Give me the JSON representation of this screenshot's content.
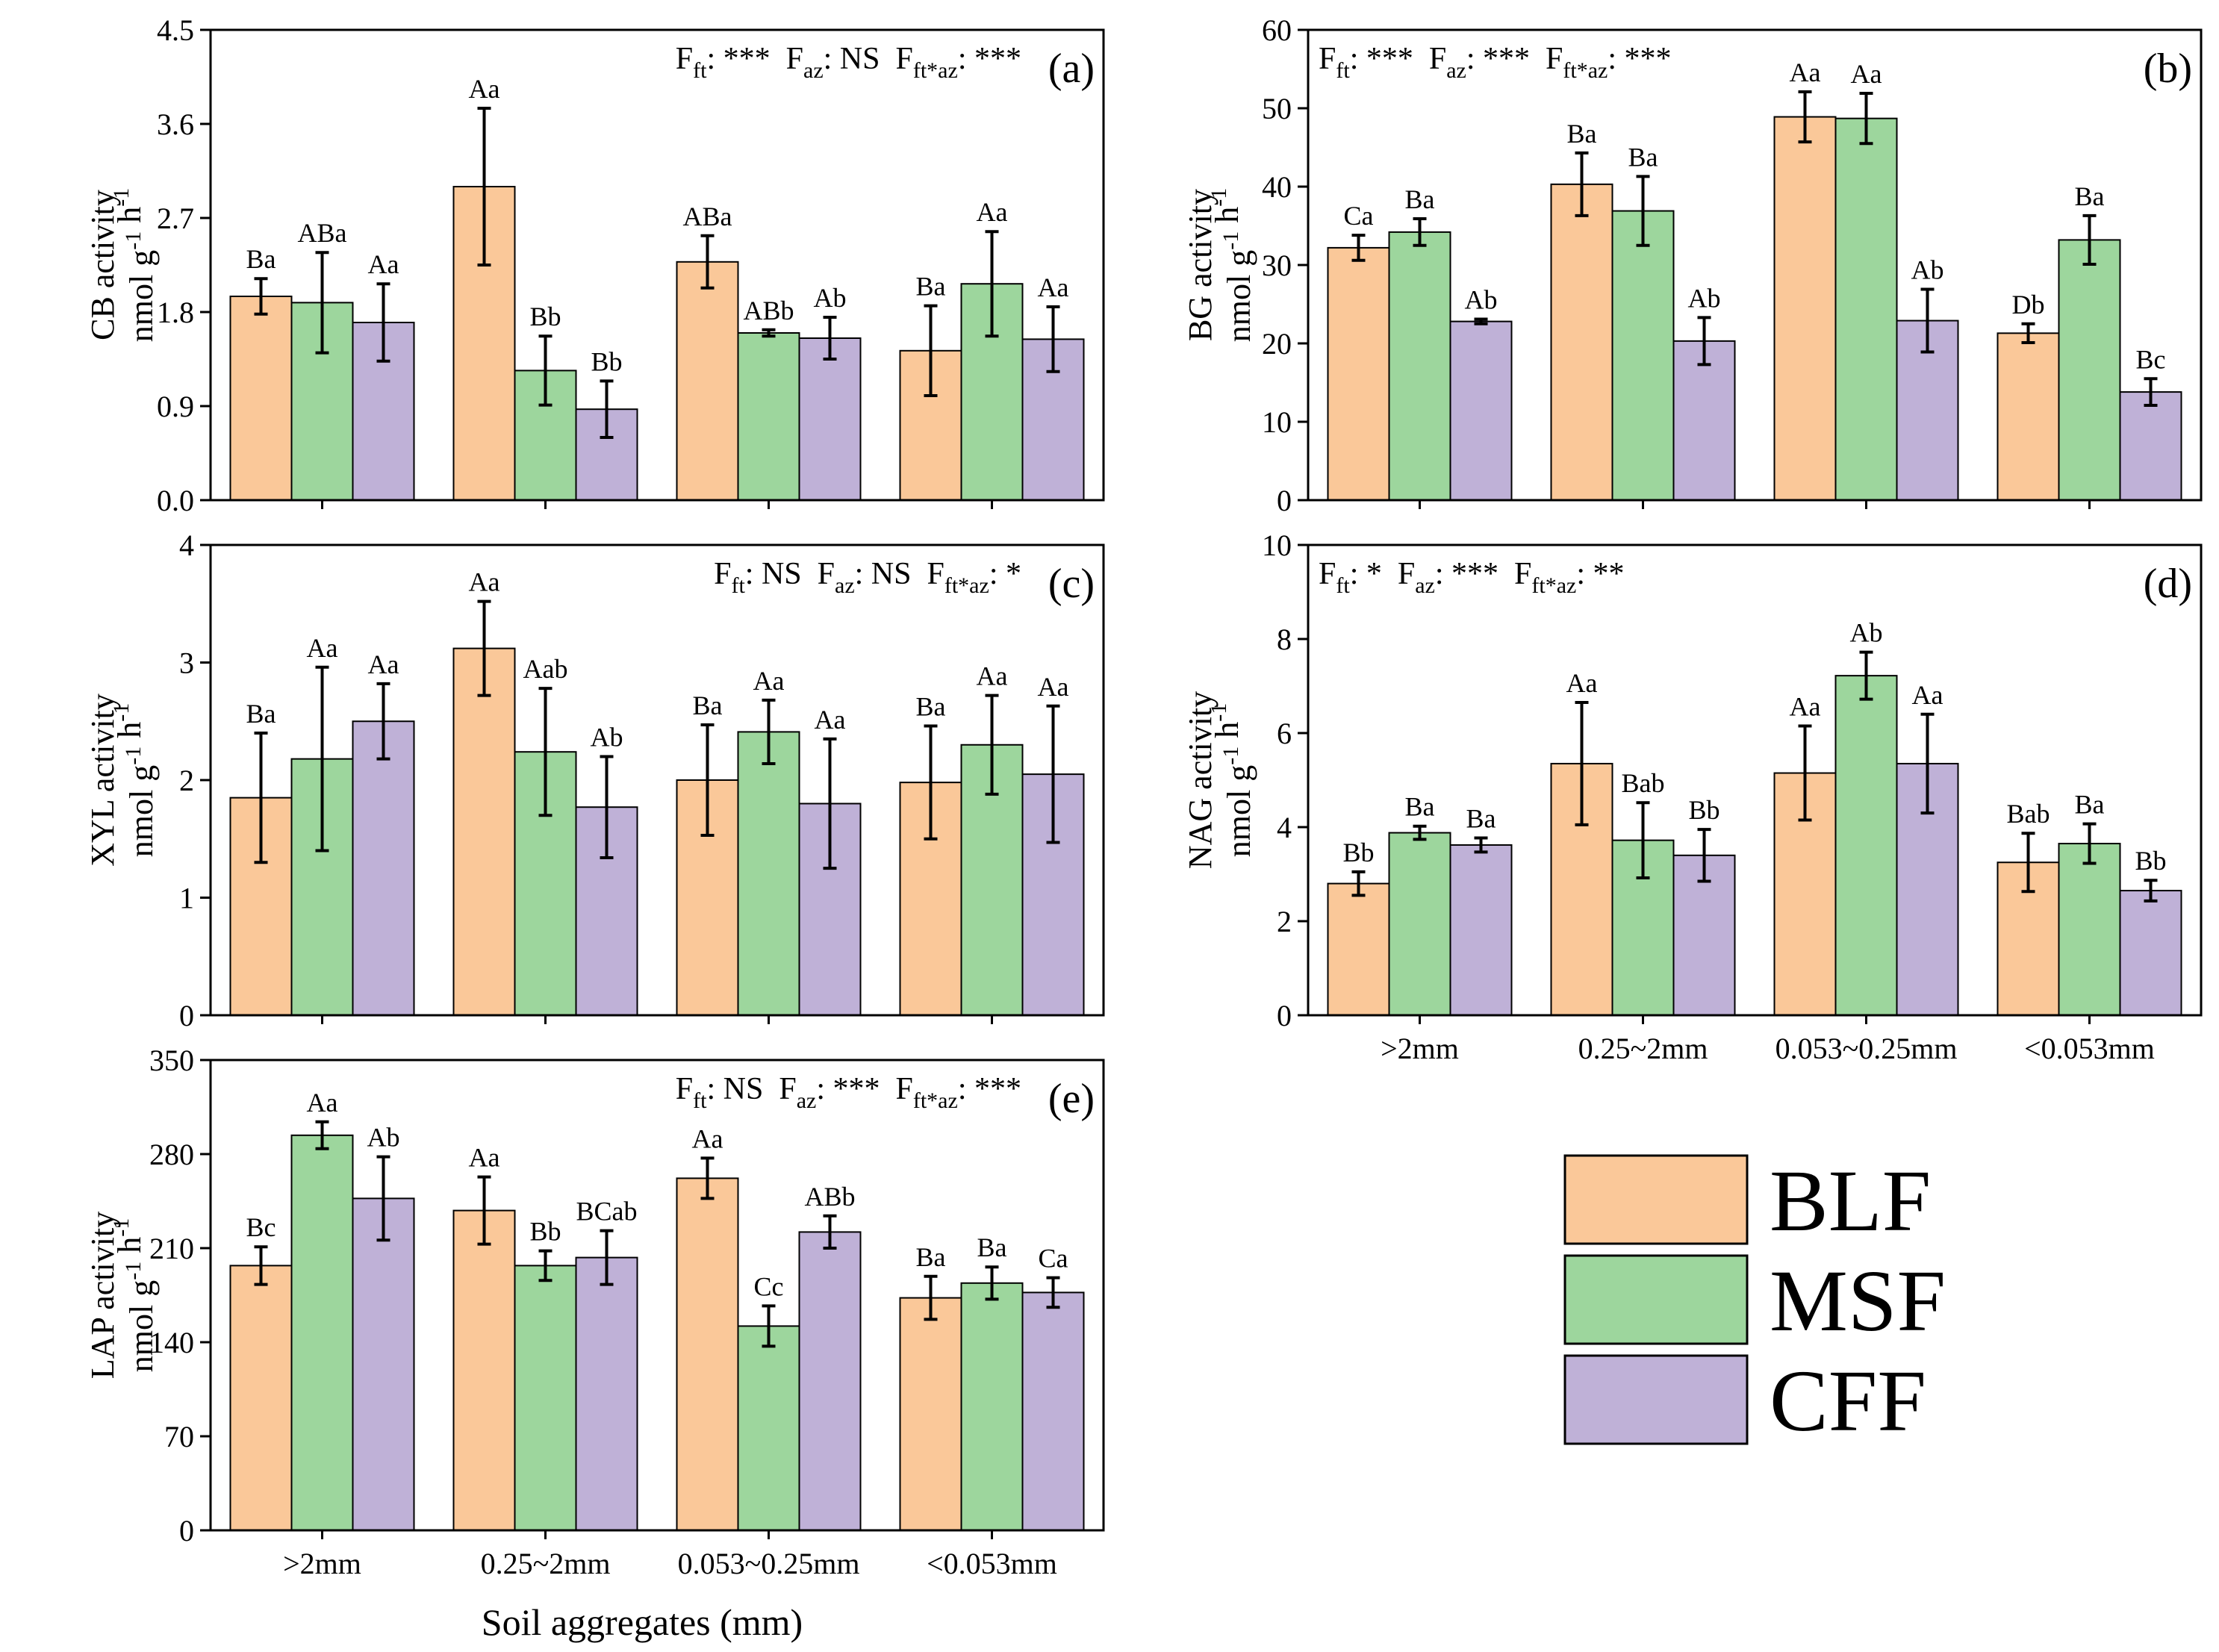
{
  "colors": {
    "BLF": "#FAC899",
    "MSF": "#9DD69D",
    "CFF": "#BFB1D7",
    "stroke": "#000000"
  },
  "legend": [
    {
      "key": "BLF",
      "label": "BLF"
    },
    {
      "key": "MSF",
      "label": "MSF"
    },
    {
      "key": "CFF",
      "label": "CFF"
    }
  ],
  "x_axis_title": "Soil aggregates (mm)",
  "chart_data": [
    {
      "id": "a",
      "type": "bar",
      "panel_label": "(a)",
      "ylabel_main": "CB activity",
      "ylabel_unit": "nmol g-1 h-1",
      "ylim": [
        0,
        4.5
      ],
      "yticks": [
        "0.0",
        "0.9",
        "1.8",
        "2.7",
        "3.6",
        "4.5"
      ],
      "stats": "Fft: ***  Faz: NS  Fft*az: ***",
      "stat_parts": [
        [
          "F",
          "ft",
          ": ***  "
        ],
        [
          "F",
          "az",
          ": NS  "
        ],
        [
          "F",
          "ft*az",
          ": ***"
        ]
      ],
      "categories": [
        ">2mm",
        "0.25~2mm",
        "0.053~0.25mm",
        "<0.053mm"
      ],
      "show_categories": false,
      "series": [
        {
          "name": "BLF",
          "values": [
            1.95,
            3.0,
            2.28,
            1.43
          ],
          "errors": [
            0.17,
            0.75,
            0.25,
            0.43
          ],
          "labels": [
            "Ba",
            "Aa",
            "ABa",
            "Ba"
          ]
        },
        {
          "name": "MSF",
          "values": [
            1.89,
            1.24,
            1.6,
            2.07
          ],
          "errors": [
            0.48,
            0.33,
            0.03,
            0.5
          ],
          "labels": [
            "ABa",
            "Bb",
            "ABb",
            "Aa"
          ]
        },
        {
          "name": "CFF",
          "values": [
            1.7,
            0.87,
            1.55,
            1.54
          ],
          "errors": [
            0.37,
            0.27,
            0.2,
            0.31
          ],
          "labels": [
            "Aa",
            "Bb",
            "Ab",
            "Aa"
          ]
        }
      ]
    },
    {
      "id": "b",
      "type": "bar",
      "panel_label": "(b)",
      "ylabel_main": "BG activity",
      "ylabel_unit": "nmol g-1 h-1",
      "ylim": [
        0,
        60
      ],
      "yticks": [
        "0",
        "10",
        "20",
        "30",
        "40",
        "50",
        "60"
      ],
      "stats": "Fft: ***  Faz: ***  Fft*az: ***",
      "stat_parts": [
        [
          "F",
          "ft",
          ": ***  "
        ],
        [
          "F",
          "az",
          ": ***  "
        ],
        [
          "F",
          "ft*az",
          ": ***"
        ]
      ],
      "categories": [
        ">2mm",
        "0.25~2mm",
        "0.053~0.25mm",
        "<0.053mm"
      ],
      "show_categories": false,
      "series": [
        {
          "name": "BLF",
          "values": [
            32.2,
            40.3,
            48.9,
            21.3
          ],
          "errors": [
            1.6,
            4.0,
            3.2,
            1.2
          ],
          "labels": [
            "Ca",
            "Ba",
            "Aa",
            "Db"
          ]
        },
        {
          "name": "MSF",
          "values": [
            34.2,
            36.9,
            48.7,
            33.2
          ],
          "errors": [
            1.7,
            4.4,
            3.2,
            3.1
          ],
          "labels": [
            "Ba",
            "Ba",
            "Aa",
            "Ba"
          ]
        },
        {
          "name": "CFF",
          "values": [
            22.8,
            20.3,
            22.9,
            13.8
          ],
          "errors": [
            0.3,
            3.0,
            4.0,
            1.7
          ],
          "labels": [
            "Ab",
            "Ab",
            "Ab",
            "Bc"
          ]
        }
      ]
    },
    {
      "id": "c",
      "type": "bar",
      "panel_label": "(c)",
      "ylabel_main": "XYL activity",
      "ylabel_unit": "nmol g-1 h-1",
      "ylim": [
        0,
        4
      ],
      "yticks": [
        "0",
        "1",
        "2",
        "3",
        "4"
      ],
      "stats": "Fft: NS  Faz: NS  Fft*az: *",
      "stat_parts": [
        [
          "F",
          "ft",
          ": NS  "
        ],
        [
          "F",
          "az",
          ": NS  "
        ],
        [
          "F",
          "ft*az",
          ": *"
        ]
      ],
      "categories": [
        ">2mm",
        "0.25~2mm",
        "0.053~0.25mm",
        "<0.053mm"
      ],
      "show_categories": false,
      "series": [
        {
          "name": "BLF",
          "values": [
            1.85,
            3.12,
            2.0,
            1.98
          ],
          "errors": [
            0.55,
            0.4,
            0.47,
            0.48
          ],
          "labels": [
            "Ba",
            "Aa",
            "Ba",
            "Ba"
          ]
        },
        {
          "name": "MSF",
          "values": [
            2.18,
            2.24,
            2.41,
            2.3
          ],
          "errors": [
            0.78,
            0.54,
            0.27,
            0.42
          ],
          "labels": [
            "Aa",
            "Aab",
            "Aa",
            "Aa"
          ]
        },
        {
          "name": "CFF",
          "values": [
            2.5,
            1.77,
            1.8,
            2.05
          ],
          "errors": [
            0.32,
            0.43,
            0.55,
            0.58
          ],
          "labels": [
            "Aa",
            "Ab",
            "Aa",
            "Aa"
          ]
        }
      ]
    },
    {
      "id": "d",
      "type": "bar",
      "panel_label": "(d)",
      "ylabel_main": "NAG activity",
      "ylabel_unit": "nmol g-1 h-1",
      "ylim": [
        0,
        10
      ],
      "yticks": [
        "0",
        "2",
        "4",
        "6",
        "8",
        "10"
      ],
      "stats": "Fft: *  Faz: ***  Fft*az: **",
      "stat_parts": [
        [
          "F",
          "ft",
          ": *  "
        ],
        [
          "F",
          "az",
          ": ***  "
        ],
        [
          "F",
          "ft*az",
          ": **"
        ]
      ],
      "categories": [
        ">2mm",
        "0.25~2mm",
        "0.053~0.25mm",
        "<0.053mm"
      ],
      "show_categories": true,
      "series": [
        {
          "name": "BLF",
          "values": [
            2.8,
            5.35,
            5.15,
            3.25
          ],
          "errors": [
            0.25,
            1.3,
            1.0,
            0.62
          ],
          "labels": [
            "Bb",
            "Aa",
            "Aa",
            "Bab"
          ]
        },
        {
          "name": "MSF",
          "values": [
            3.88,
            3.72,
            7.22,
            3.65
          ],
          "errors": [
            0.14,
            0.8,
            0.5,
            0.42
          ],
          "labels": [
            "Ba",
            "Bab",
            "Ab",
            "Ba"
          ]
        },
        {
          "name": "CFF",
          "values": [
            3.62,
            3.4,
            5.35,
            2.65
          ],
          "errors": [
            0.15,
            0.55,
            1.05,
            0.22
          ],
          "labels": [
            "Ba",
            "Bb",
            "Aa",
            "Bb"
          ]
        }
      ]
    },
    {
      "id": "e",
      "type": "bar",
      "panel_label": "(e)",
      "ylabel_main": "LAP activity",
      "ylabel_unit": "nmol g-1 h-1",
      "ylim": [
        0,
        350
      ],
      "yticks": [
        "0",
        "70",
        "140",
        "210",
        "280",
        "350"
      ],
      "stats": "Fft: NS  Faz: ***  Fft*az: ***",
      "stat_parts": [
        [
          "F",
          "ft",
          ": NS  "
        ],
        [
          "F",
          "az",
          ": ***  "
        ],
        [
          "F",
          "ft*az",
          ": ***"
        ]
      ],
      "categories": [
        ">2mm",
        "0.25~2mm",
        "0.053~0.25mm",
        "<0.053mm"
      ],
      "show_categories": true,
      "series": [
        {
          "name": "BLF",
          "values": [
            197,
            238,
            262,
            173
          ],
          "errors": [
            14,
            25,
            15,
            16
          ],
          "labels": [
            "Bc",
            "Aa",
            "Aa",
            "Ba"
          ]
        },
        {
          "name": "MSF",
          "values": [
            294,
            197,
            152,
            184
          ],
          "errors": [
            10,
            11,
            15,
            12
          ],
          "labels": [
            "Aa",
            "Bb",
            "Cc",
            "Ba"
          ]
        },
        {
          "name": "CFF",
          "values": [
            247,
            203,
            222,
            177
          ],
          "errors": [
            31,
            20,
            12,
            11
          ],
          "labels": [
            "Ab",
            "BCab",
            "ABb",
            "Ca"
          ]
        }
      ]
    }
  ]
}
